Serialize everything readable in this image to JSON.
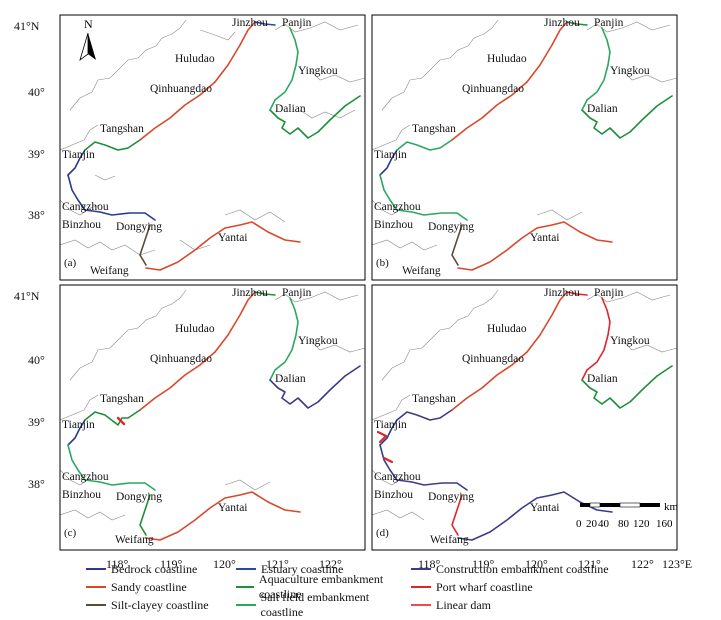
{
  "figure": {
    "lat_labels": [
      "41°N",
      "40°",
      "39°",
      "38°"
    ],
    "lon_labels": [
      "118°",
      "119°",
      "120°",
      "121°",
      "122°",
      "123°E"
    ],
    "cities": [
      "Jinzhou",
      "Panjin",
      "Huludao",
      "Yingkou",
      "Qinhuangdao",
      "Dalian",
      "Tangshan",
      "Tianjin",
      "Cangzhou",
      "Binzhou",
      "Dongying",
      "Yantai",
      "Weifang"
    ],
    "panels": [
      {
        "id": "a",
        "label": "(a)",
        "show_north": true
      },
      {
        "id": "b",
        "label": "(b)"
      },
      {
        "id": "c",
        "label": "(c)"
      },
      {
        "id": "d",
        "label": "(d)",
        "show_scalebar": true
      }
    ],
    "north_arrow": "N",
    "scalebar": {
      "ticks": [
        "0",
        "20",
        "40",
        "80",
        "120",
        "160"
      ],
      "unit": "km"
    }
  },
  "legend": {
    "items": [
      {
        "label": "Bedrock coastline",
        "color": "#2b3a8c"
      },
      {
        "label": "Estuary coastline",
        "color": "#2a4aa0"
      },
      {
        "label": "Construction embankment coastline",
        "color": "#3b3b8a"
      },
      {
        "label": "Sandy coastline",
        "color": "#d9482b"
      },
      {
        "label": "Aquaculture embankment coastline",
        "color": "#1f8f3a"
      },
      {
        "label": "Port wharf coastline",
        "color": "#e0252a"
      },
      {
        "label": "Silt-clayey coastline",
        "color": "#5a4a3a"
      },
      {
        "label": "Salt field embankment coastline",
        "color": "#2aa860"
      },
      {
        "label": "Linear dam",
        "color": "#f04a4a"
      }
    ]
  }
}
